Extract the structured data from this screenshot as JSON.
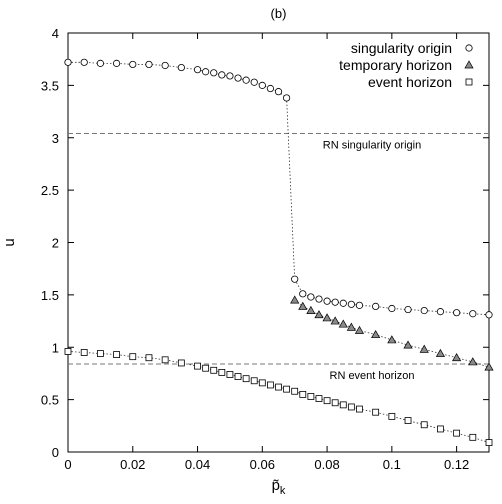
{
  "chart_data": {
    "type": "scatter",
    "panel_label": "(b)",
    "xlabel": "p̃",
    "xlabel_sub": "k",
    "ylabel": "u",
    "xlim": [
      0,
      0.13
    ],
    "ylim": [
      0,
      4
    ],
    "x_ticks": [
      0,
      0.02,
      0.04,
      0.06,
      0.08,
      0.1,
      0.12
    ],
    "x_tick_labels": [
      "0",
      "0.02",
      "0.04",
      "0.06",
      "0.08",
      "0.1",
      "0.12"
    ],
    "y_ticks": [
      0,
      0.5,
      1,
      1.5,
      2,
      2.5,
      3,
      3.5,
      4
    ],
    "y_tick_labels": [
      "0",
      "0.5",
      "1",
      "1.5",
      "2",
      "2.5",
      "3",
      "3.5",
      "4"
    ],
    "grid": false,
    "legend_position": "top-right",
    "series": [
      {
        "name": "singularity origin",
        "marker": "circle",
        "x": [
          0.0,
          0.005,
          0.01,
          0.015,
          0.02,
          0.025,
          0.03,
          0.035,
          0.04,
          0.0425,
          0.045,
          0.0475,
          0.05,
          0.0525,
          0.055,
          0.0575,
          0.06,
          0.0625,
          0.065,
          0.0675,
          0.07,
          0.0725,
          0.075,
          0.0775,
          0.08,
          0.0825,
          0.085,
          0.0875,
          0.09,
          0.095,
          0.1,
          0.105,
          0.11,
          0.115,
          0.12,
          0.125,
          0.13
        ],
        "y": [
          3.72,
          3.72,
          3.71,
          3.71,
          3.7,
          3.7,
          3.69,
          3.67,
          3.65,
          3.63,
          3.62,
          3.6,
          3.59,
          3.57,
          3.55,
          3.53,
          3.5,
          3.47,
          3.44,
          3.38,
          1.65,
          1.51,
          1.48,
          1.46,
          1.44,
          1.43,
          1.42,
          1.41,
          1.4,
          1.39,
          1.37,
          1.36,
          1.35,
          1.34,
          1.33,
          1.32,
          1.31
        ]
      },
      {
        "name": "temporary horizon",
        "marker": "triangle",
        "x": [
          0.07,
          0.0725,
          0.075,
          0.0775,
          0.08,
          0.0825,
          0.085,
          0.0875,
          0.09,
          0.095,
          0.1,
          0.105,
          0.11,
          0.115,
          0.12,
          0.125,
          0.13
        ],
        "y": [
          1.45,
          1.39,
          1.35,
          1.31,
          1.28,
          1.25,
          1.22,
          1.19,
          1.16,
          1.12,
          1.07,
          1.02,
          0.98,
          0.94,
          0.9,
          0.86,
          0.81
        ]
      },
      {
        "name": "event horizon",
        "marker": "square",
        "x": [
          0.0,
          0.005,
          0.01,
          0.015,
          0.02,
          0.025,
          0.03,
          0.035,
          0.04,
          0.0425,
          0.045,
          0.0475,
          0.05,
          0.0525,
          0.055,
          0.0575,
          0.06,
          0.0625,
          0.065,
          0.0675,
          0.07,
          0.0725,
          0.075,
          0.0775,
          0.08,
          0.0825,
          0.085,
          0.0875,
          0.09,
          0.095,
          0.1,
          0.105,
          0.11,
          0.115,
          0.12,
          0.125,
          0.13
        ],
        "y": [
          0.96,
          0.95,
          0.94,
          0.93,
          0.91,
          0.9,
          0.88,
          0.85,
          0.82,
          0.8,
          0.78,
          0.76,
          0.74,
          0.72,
          0.7,
          0.68,
          0.66,
          0.64,
          0.62,
          0.6,
          0.58,
          0.55,
          0.53,
          0.51,
          0.49,
          0.47,
          0.45,
          0.43,
          0.41,
          0.38,
          0.34,
          0.3,
          0.26,
          0.22,
          0.18,
          0.14,
          0.09
        ]
      }
    ],
    "reference_lines": [
      {
        "label": "RN singularity origin",
        "y": 3.04
      },
      {
        "label": "RN event horizon",
        "y": 0.84
      }
    ]
  }
}
